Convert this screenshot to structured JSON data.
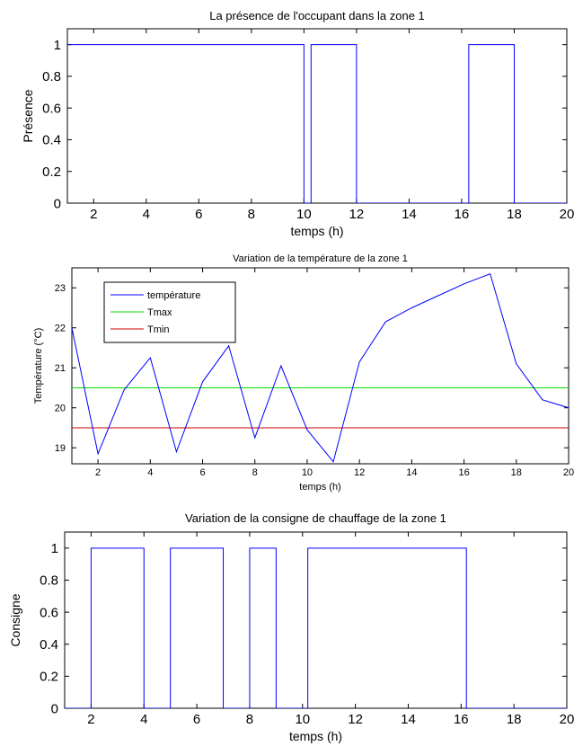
{
  "chart_data": [
    {
      "type": "line",
      "title": "La présence de l'occupant dans la zone 1",
      "xlabel": "temps (h)",
      "ylabel": "Présence",
      "xlim": [
        1,
        20
      ],
      "ylim": [
        0,
        1.1
      ],
      "x_ticks": [
        2,
        4,
        6,
        8,
        10,
        12,
        14,
        16,
        18,
        20
      ],
      "x_tick_labels": [
        "2",
        "4",
        "6",
        "8",
        "10",
        "12",
        "14",
        "16",
        "18",
        "20"
      ],
      "y_ticks": [
        0,
        0.2,
        0.4,
        0.6,
        0.8,
        1
      ],
      "y_tick_labels": [
        "0",
        "0.2",
        "0.4",
        "0.6",
        "0.8",
        "1"
      ],
      "grid": false,
      "series": [
        {
          "color": "#0000ff",
          "x": [
            1,
            10,
            10,
            10.27,
            10.27,
            12,
            12,
            16.27,
            16.27,
            18,
            18,
            20
          ],
          "y": [
            1,
            1,
            0,
            0,
            1,
            1,
            0,
            0,
            1,
            1,
            0,
            0
          ]
        }
      ]
    },
    {
      "type": "line",
      "title": "Variation de la température de la zone 1",
      "xlabel": "temps (h)",
      "ylabel": "Température (°C)",
      "xlim": [
        1,
        20
      ],
      "ylim": [
        18.6,
        23.5
      ],
      "x_ticks": [
        2,
        4,
        6,
        8,
        10,
        12,
        14,
        16,
        18,
        20
      ],
      "x_tick_labels": [
        "2",
        "4",
        "6",
        "8",
        "10",
        "12",
        "14",
        "16",
        "18",
        "20"
      ],
      "y_ticks": [
        19,
        20,
        21,
        22,
        23
      ],
      "y_tick_labels": [
        "19",
        "20",
        "21",
        "22",
        "23"
      ],
      "grid": false,
      "legend_position": "top-left",
      "series": [
        {
          "name": "température",
          "color": "#0000ff",
          "x": [
            1,
            2,
            3,
            4,
            5,
            6,
            7,
            8,
            9,
            10,
            11,
            12,
            13,
            14,
            15,
            16,
            17,
            18,
            19,
            20
          ],
          "y": [
            22.0,
            18.85,
            20.45,
            21.25,
            18.9,
            20.65,
            21.55,
            19.25,
            21.05,
            19.45,
            18.65,
            21.15,
            22.15,
            22.5,
            22.8,
            23.1,
            23.35,
            21.1,
            20.2,
            20.0
          ]
        },
        {
          "name": "Tmax",
          "color": "#00dd00",
          "x": [
            1,
            20
          ],
          "y": [
            20.5,
            20.5
          ]
        },
        {
          "name": "Tmin",
          "color": "#cc0000",
          "x": [
            1,
            20
          ],
          "y": [
            19.5,
            19.5
          ]
        }
      ]
    },
    {
      "type": "line",
      "title": "Variation de la consigne de chauffage de la zone 1",
      "xlabel": "temps (h)",
      "ylabel": "Consigne",
      "xlim": [
        1,
        20
      ],
      "ylim": [
        0,
        1.1
      ],
      "x_ticks": [
        2,
        4,
        6,
        8,
        10,
        12,
        14,
        16,
        18,
        20
      ],
      "x_tick_labels": [
        "2",
        "4",
        "6",
        "8",
        "10",
        "12",
        "14",
        "16",
        "18",
        "20"
      ],
      "y_ticks": [
        0,
        0.2,
        0.4,
        0.6,
        0.8,
        1
      ],
      "y_tick_labels": [
        "0",
        "0.2",
        "0.4",
        "0.6",
        "0.8",
        "1"
      ],
      "grid": false,
      "series": [
        {
          "color": "#0000ff",
          "x": [
            1,
            2,
            2,
            4,
            4,
            5,
            5,
            7,
            7,
            8,
            8,
            9,
            9,
            10.2,
            10.2,
            16.2,
            16.2,
            20
          ],
          "y": [
            0,
            0,
            1,
            1,
            0,
            0,
            1,
            1,
            0,
            0,
            1,
            1,
            0,
            0,
            1,
            1,
            0,
            0
          ]
        }
      ]
    }
  ]
}
